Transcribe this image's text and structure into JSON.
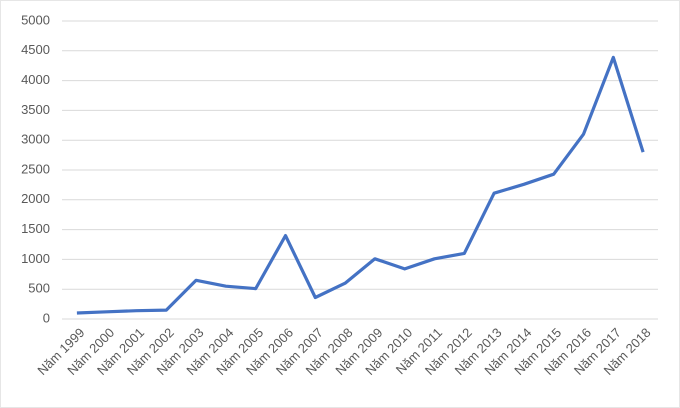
{
  "chart_data": {
    "type": "line",
    "categories": [
      "Năm 1999",
      "Năm 2000",
      "Năm 2001",
      "Năm 2002",
      "Năm 2003",
      "Năm 2004",
      "Năm 2005",
      "Năm 2006",
      "Năm 2007",
      "Năm 2008",
      "Năm 2009",
      "Năm 2010",
      "Năm 2011",
      "Năm 2012",
      "Năm 2013",
      "Năm 2014",
      "Năm 2015",
      "Năm 2016",
      "Năm 2017",
      "Năm 2018"
    ],
    "values": [
      100,
      120,
      140,
      150,
      650,
      550,
      510,
      1400,
      360,
      600,
      1010,
      840,
      1010,
      1100,
      2110,
      2260,
      2430,
      3100,
      4390,
      2800
    ],
    "color": "#4472c4",
    "ylim": [
      0,
      5000
    ],
    "yticks": [
      0,
      500,
      1000,
      1500,
      2000,
      2500,
      3000,
      3500,
      4000,
      4500,
      5000
    ],
    "grid": true
  }
}
